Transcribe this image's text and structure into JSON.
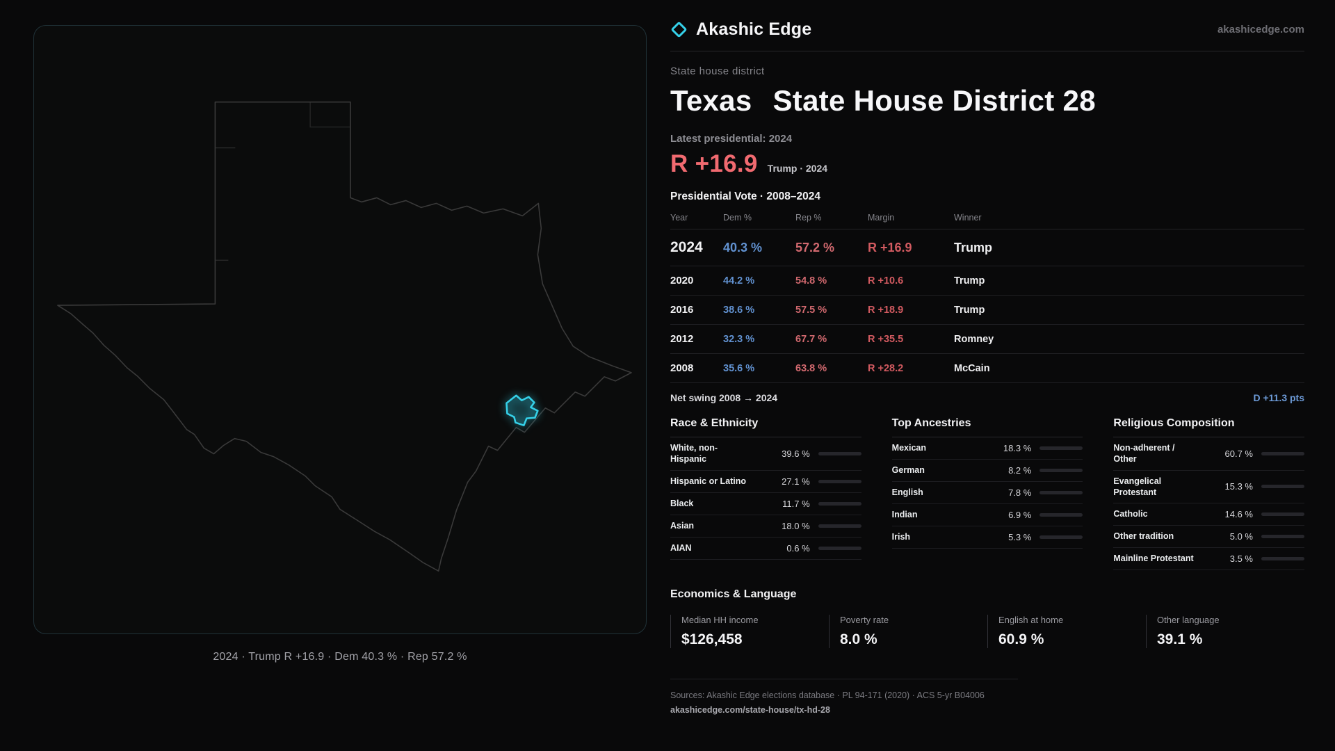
{
  "brand": {
    "name": "Akashic Edge",
    "domain": "akashicedge.com",
    "accent": "#35d0e8"
  },
  "map": {
    "caption": "2024 · Trump R +16.9 · Dem 40.3 % · Rep 57.2 %",
    "district_color": "#35d0e8"
  },
  "header": {
    "kicker": "State house district",
    "title_state": "Texas",
    "title_rest": "State House District 28",
    "latest": "Latest presidential: 2024",
    "margin": "R +16.9",
    "margin_sub": "Trump · 2024"
  },
  "table": {
    "title": "Presidential Vote · 2008–2024",
    "columns": {
      "year": "Year",
      "dem": "Dem %",
      "rep": "Rep %",
      "margin": "Margin",
      "winner": "Winner"
    },
    "rows": [
      {
        "year": "2024",
        "dem": "40.3 %",
        "rep": "57.2 %",
        "margin": "R +16.9",
        "winner": "Trump"
      },
      {
        "year": "2020",
        "dem": "44.2 %",
        "rep": "54.8 %",
        "margin": "R +10.6",
        "winner": "Trump"
      },
      {
        "year": "2016",
        "dem": "38.6 %",
        "rep": "57.5 %",
        "margin": "R +18.9",
        "winner": "Trump"
      },
      {
        "year": "2012",
        "dem": "32.3 %",
        "rep": "67.7 %",
        "margin": "R +35.5",
        "winner": "Romney"
      },
      {
        "year": "2008",
        "dem": "35.6 %",
        "rep": "63.8 %",
        "margin": "R +28.2",
        "winner": "McCain"
      }
    ],
    "swing_label": "Net swing 2008 → 2024",
    "swing_value": "D +11.3 pts"
  },
  "demographics": [
    {
      "title": "Race & Ethnicity",
      "rows": [
        {
          "label": "White, non-Hispanic",
          "value": "39.6 %",
          "pct": 39.6,
          "color": "#8e949c"
        },
        {
          "label": "Hispanic or Latino",
          "value": "27.1 %",
          "pct": 27.1,
          "color": "#d4a340"
        },
        {
          "label": "Black",
          "value": "11.7 %",
          "pct": 11.7,
          "color": "#8d7fd8"
        },
        {
          "label": "Asian",
          "value": "18.0 %",
          "pct": 18.0,
          "color": "#3cc398"
        },
        {
          "label": "AIAN",
          "value": "0.6 %",
          "pct": 0.6,
          "color": "#8e949c"
        }
      ]
    },
    {
      "title": "Top Ancestries",
      "rows": [
        {
          "label": "Mexican",
          "value": "18.3 %",
          "pct": 18.3,
          "color": "#d4a340"
        },
        {
          "label": "German",
          "value": "8.2 %",
          "pct": 8.2,
          "color": "#9aa0a8"
        },
        {
          "label": "English",
          "value": "7.8 %",
          "pct": 7.8,
          "color": "#9aa0a8"
        },
        {
          "label": "Indian",
          "value": "6.9 %",
          "pct": 6.9,
          "color": "#3cc398"
        },
        {
          "label": "Irish",
          "value": "5.3 %",
          "pct": 5.3,
          "color": "#9aa0a8"
        }
      ]
    },
    {
      "title": "Religious Composition",
      "rows": [
        {
          "label": "Non-adherent / Other",
          "value": "60.7 %",
          "pct": 60.7,
          "color": "#8e949c"
        },
        {
          "label": "Evangelical Protestant",
          "value": "15.3 %",
          "pct": 15.3,
          "color": "#e0696f"
        },
        {
          "label": "Catholic",
          "value": "14.6 %",
          "pct": 14.6,
          "color": "#d4a340"
        },
        {
          "label": "Other tradition",
          "value": "5.0 %",
          "pct": 5.0,
          "color": "#9aa0a8"
        },
        {
          "label": "Mainline Protestant",
          "value": "3.5 %",
          "pct": 3.5,
          "color": "#6d9bd8"
        }
      ]
    }
  ],
  "economics": {
    "title": "Economics & Language",
    "stats": [
      {
        "label": "Median HH income",
        "value": "$126,458"
      },
      {
        "label": "Poverty rate",
        "value": "8.0 %"
      },
      {
        "label": "English at home",
        "value": "60.9 %"
      },
      {
        "label": "Other language",
        "value": "39.1 %"
      }
    ]
  },
  "footer": {
    "sources": "Sources: Akashic Edge elections database · PL 94-171 (2020) · ACS 5-yr B04006",
    "permalink": "akashicedge.com/state-house/tx-hd-28"
  },
  "chart_data": [
    {
      "type": "table",
      "title": "Presidential Vote · 2008–2024",
      "columns": [
        "Year",
        "Dem %",
        "Rep %",
        "Margin",
        "Winner"
      ],
      "rows": [
        [
          "2024",
          40.3,
          57.2,
          "R +16.9",
          "Trump"
        ],
        [
          "2020",
          44.2,
          54.8,
          "R +10.6",
          "Trump"
        ],
        [
          "2016",
          38.6,
          57.5,
          "R +18.9",
          "Trump"
        ],
        [
          "2012",
          32.3,
          67.7,
          "R +35.5",
          "Romney"
        ],
        [
          "2008",
          35.6,
          63.8,
          "R +28.2",
          "McCain"
        ]
      ],
      "note": "Net swing 2008 → 2024: D +11.3 pts"
    },
    {
      "type": "bar",
      "title": "Race & Ethnicity",
      "categories": [
        "White, non-Hispanic",
        "Hispanic or Latino",
        "Black",
        "Asian",
        "AIAN"
      ],
      "values": [
        39.6,
        27.1,
        11.7,
        18.0,
        0.6
      ],
      "unit": "%",
      "xlim": [
        0,
        100
      ]
    },
    {
      "type": "bar",
      "title": "Top Ancestries",
      "categories": [
        "Mexican",
        "German",
        "English",
        "Indian",
        "Irish"
      ],
      "values": [
        18.3,
        8.2,
        7.8,
        6.9,
        5.3
      ],
      "unit": "%",
      "xlim": [
        0,
        100
      ]
    },
    {
      "type": "bar",
      "title": "Religious Composition",
      "categories": [
        "Non-adherent / Other",
        "Evangelical Protestant",
        "Catholic",
        "Other tradition",
        "Mainline Protestant"
      ],
      "values": [
        60.7,
        15.3,
        14.6,
        5.0,
        3.5
      ],
      "unit": "%",
      "xlim": [
        0,
        100
      ]
    }
  ]
}
